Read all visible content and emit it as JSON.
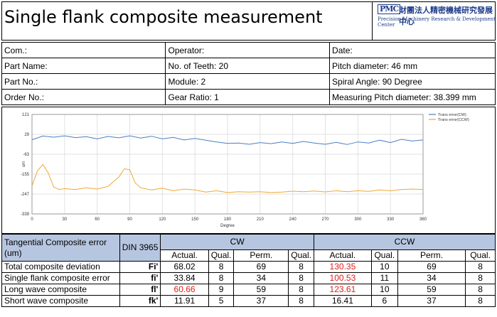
{
  "header": {
    "title": "Single flank composite measurement",
    "logo_mark": "PMC",
    "logo_cn": "財團法人精密機械研究發展中心",
    "logo_en": "Precision Machinery Research & Development Center"
  },
  "info": {
    "rows": [
      [
        "Com.:",
        "Operator:",
        "Date:"
      ],
      [
        "Part Name:",
        "No. of Teeth:  20",
        "Pitch diameter:  46  mm"
      ],
      [
        "Part No.:",
        "Module:  2",
        "Spiral Angle:  90  Degree"
      ],
      [
        "Order No.:",
        "Gear Ratio:  1",
        "Measuring Pitch diameter:  38.399  mm"
      ]
    ]
  },
  "chart_data": {
    "type": "line",
    "xlabel": "Degree",
    "ylabel": "um",
    "xlim": [
      0,
      360
    ],
    "ylim": [
      -339,
      121
    ],
    "x_ticks": [
      "0",
      "30",
      "60",
      "90",
      "120",
      "150",
      "180",
      "210",
      "240",
      "270",
      "300",
      "330",
      "360"
    ],
    "y_ticks": [
      "121",
      "29",
      "-63",
      "-155",
      "-247",
      "-339"
    ],
    "grid": true,
    "legend_position": "top-right",
    "series": [
      {
        "name": "Trans error(CW)",
        "color": "#4a7fc1",
        "x": [
          0,
          10,
          20,
          30,
          40,
          50,
          60,
          70,
          80,
          90,
          100,
          110,
          120,
          130,
          140,
          150,
          160,
          170,
          180,
          190,
          200,
          210,
          220,
          230,
          240,
          250,
          260,
          270,
          280,
          290,
          300,
          310,
          320,
          330,
          340,
          350,
          360
        ],
        "values": [
          4,
          21,
          16,
          22,
          14,
          18,
          8,
          19,
          13,
          22,
          12,
          20,
          8,
          15,
          3,
          10,
          2,
          -6,
          -13,
          -11,
          -17,
          -9,
          -14,
          -6,
          -13,
          -4,
          -11,
          -17,
          -8,
          -18,
          -6,
          -11,
          2,
          -9,
          6,
          -2,
          3
        ]
      },
      {
        "name": "Trans error(CCW)",
        "color": "#f0a830",
        "x": [
          0,
          5,
          10,
          15,
          20,
          25,
          30,
          40,
          50,
          60,
          70,
          80,
          85,
          90,
          95,
          100,
          110,
          120,
          130,
          140,
          150,
          160,
          170,
          180,
          190,
          200,
          210,
          220,
          230,
          240,
          250,
          260,
          270,
          280,
          290,
          300,
          310,
          320,
          330,
          340,
          350,
          360
        ],
        "values": [
          -210,
          -140,
          -110,
          -150,
          -215,
          -226,
          -222,
          -226,
          -218,
          -224,
          -212,
          -168,
          -130,
          -135,
          -195,
          -218,
          -228,
          -220,
          -232,
          -224,
          -228,
          -238,
          -232,
          -240,
          -236,
          -238,
          -236,
          -240,
          -238,
          -234,
          -236,
          -233,
          -237,
          -232,
          -236,
          -232,
          -235,
          -228,
          -232,
          -226,
          -224,
          -226
        ]
      }
    ]
  },
  "results": {
    "col_title": "Tangential Composite error (um)",
    "standard": "DIN 3965",
    "cw_label": "CW",
    "ccw_label": "CCW",
    "sub_headers": [
      "Actual.",
      "Qual.",
      "Perm.",
      "Qual.",
      "Actual.",
      "Qual.",
      "Perm.",
      "Qual."
    ],
    "rows": [
      {
        "name": "Total composite deviation",
        "sym": "Fi'",
        "v": [
          "68.02",
          "8",
          "69",
          "8",
          "130.35",
          "10",
          "69",
          "8"
        ],
        "red": [
          false,
          false,
          false,
          false,
          true,
          false,
          false,
          false
        ]
      },
      {
        "name": "Single flank composite error",
        "sym": "fi'",
        "v": [
          "33.84",
          "8",
          "34",
          "8",
          "100.53",
          "11",
          "34",
          "8"
        ],
        "red": [
          false,
          false,
          false,
          false,
          true,
          false,
          false,
          false
        ]
      },
      {
        "name": "Long wave composite",
        "sym": "fl'",
        "v": [
          "60.66",
          "9",
          "59",
          "8",
          "123.61",
          "10",
          "59",
          "8"
        ],
        "red": [
          true,
          false,
          false,
          false,
          true,
          false,
          false,
          false
        ]
      },
      {
        "name": "Short wave composite",
        "sym": "fk'",
        "v": [
          "11.91",
          "5",
          "37",
          "8",
          "16.41",
          "6",
          "37",
          "8"
        ],
        "red": [
          false,
          false,
          false,
          false,
          false,
          false,
          false,
          false
        ]
      }
    ]
  }
}
